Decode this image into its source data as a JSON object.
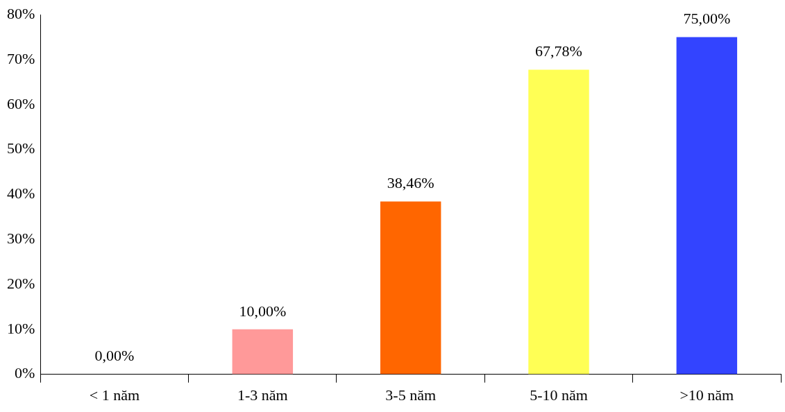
{
  "chart_data": {
    "type": "bar",
    "categories": [
      "< 1 năm",
      "1-3 năm",
      "3-5 năm",
      "5-10 năm",
      ">10 năm"
    ],
    "values": [
      0,
      10,
      38.46,
      67.78,
      75
    ],
    "colors": [
      "#ff9999",
      "#ff9999",
      "#ff6600",
      "#ffff55",
      "#3344ff"
    ],
    "value_labels": [
      "0,00%",
      "10,00%",
      "38,46%",
      "67,78%",
      "75,00%"
    ],
    "ylim": [
      0,
      80
    ],
    "yticks": [
      {
        "value": 0,
        "label": "0%"
      },
      {
        "value": 10,
        "label": "10%"
      },
      {
        "value": 20,
        "label": "20%"
      },
      {
        "value": 30,
        "label": "30%"
      },
      {
        "value": 40,
        "label": "40%"
      },
      {
        "value": 50,
        "label": "50%"
      },
      {
        "value": 60,
        "label": "60%"
      },
      {
        "value": 70,
        "label": "70%"
      },
      {
        "value": 80,
        "label": "80%"
      }
    ]
  }
}
